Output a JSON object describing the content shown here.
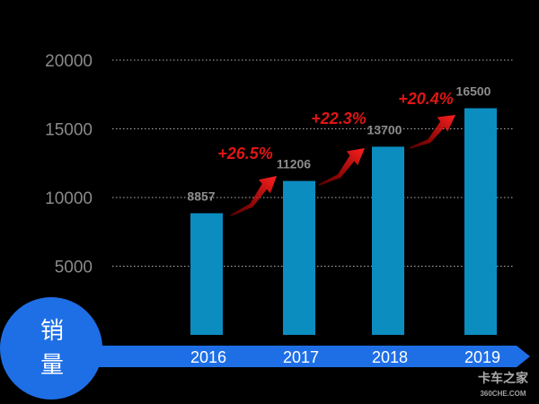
{
  "chart_data": {
    "type": "bar",
    "title": "销量",
    "categories": [
      "2016",
      "2017",
      "2018",
      "2019"
    ],
    "values": [
      8857,
      11206,
      13700,
      16500
    ],
    "value_labels": [
      "8857",
      "11206",
      "13700",
      "16500"
    ],
    "growth_labels": [
      "+26.5%",
      "+22.3%",
      "+20.4%"
    ],
    "ylim": [
      0,
      20000
    ],
    "yticks": [
      5000,
      10000,
      15000,
      20000
    ],
    "ytick_labels": [
      "5000",
      "10000",
      "15000",
      "20000"
    ],
    "grid": true,
    "colors": {
      "background": "#000000",
      "bar": "#0c8dc0",
      "axis_band": "#1e6fe6",
      "circle": "#1e6fe6",
      "growth": "#e01515",
      "tick_text": "#8a8a8a",
      "value_text": "#8c8c8c"
    }
  },
  "watermark": {
    "brand": "卡车之家",
    "domain": "360CHE.COM"
  }
}
